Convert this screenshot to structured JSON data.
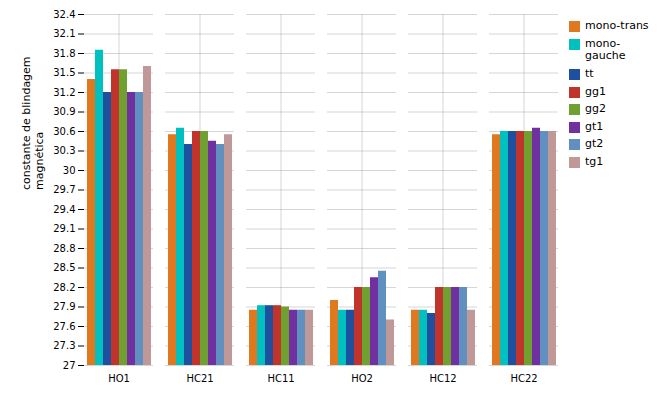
{
  "chart_data": {
    "type": "bar",
    "categories": [
      "HO1",
      "HC21",
      "HC11",
      "HO2",
      "HC12",
      "HC22"
    ],
    "series": [
      {
        "name": "mono-trans",
        "color": "#E07820",
        "values": [
          31.4,
          30.55,
          27.85,
          28.0,
          27.85,
          30.55
        ]
      },
      {
        "name": "mono-\ngauche",
        "color": "#00C0C0",
        "values": [
          31.85,
          30.65,
          27.92,
          27.85,
          27.85,
          30.6
        ]
      },
      {
        "name": "tt",
        "color": "#1F50A0",
        "values": [
          31.2,
          30.4,
          27.92,
          27.85,
          27.8,
          30.6
        ]
      },
      {
        "name": "gg1",
        "color": "#C0342C",
        "values": [
          31.55,
          30.6,
          27.92,
          28.2,
          28.2,
          30.6
        ]
      },
      {
        "name": "gg2",
        "color": "#70A030",
        "values": [
          31.55,
          30.6,
          27.9,
          28.2,
          28.2,
          30.6
        ]
      },
      {
        "name": "gt1",
        "color": "#7030A0",
        "values": [
          31.2,
          30.45,
          27.85,
          28.35,
          28.2,
          30.65
        ]
      },
      {
        "name": "gt2",
        "color": "#6090C0",
        "values": [
          31.2,
          30.4,
          27.85,
          28.45,
          28.2,
          30.6
        ]
      },
      {
        "name": "tg1",
        "color": "#C09898",
        "values": [
          31.6,
          30.55,
          27.85,
          27.7,
          27.85,
          30.6
        ]
      }
    ],
    "ylabel": "constante de blindagem\nmagnética",
    "ylim": [
      27,
      32.4
    ],
    "yticks": [
      27,
      27.3,
      27.6,
      27.9,
      28.2,
      28.5,
      28.8,
      29.1,
      29.4,
      29.7,
      30,
      30.3,
      30.6,
      30.9,
      31.2,
      31.5,
      31.8,
      32.1,
      32.4
    ],
    "grid": true,
    "legend": "right"
  }
}
